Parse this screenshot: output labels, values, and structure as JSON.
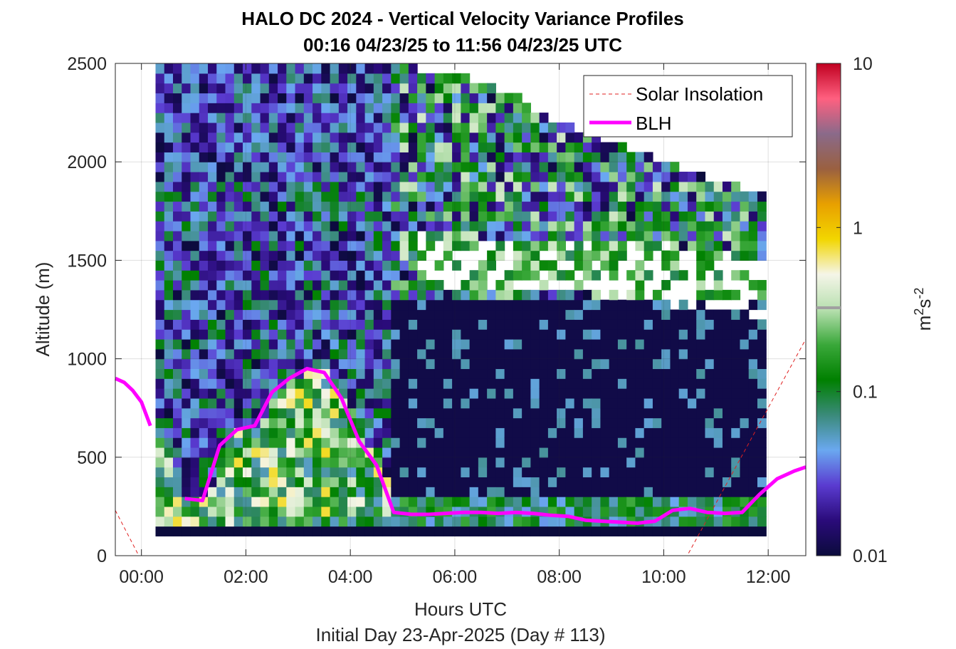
{
  "chart_data": {
    "type": "heatmap",
    "title": "HALO DC 2024 - Vertical Velocity Variance Profiles",
    "subtitle": "00:16 04/23/25 to 11:56 04/23/25  UTC",
    "xlabel": "Hours UTC",
    "xlabel2": "Initial Day 23-Apr-2025 (Day # 113)",
    "ylabel": "Altitude (m)",
    "xlim": [
      -0.5,
      12.72
    ],
    "ylim": [
      0,
      2500
    ],
    "x_ticks": [
      0,
      2,
      4,
      6,
      8,
      10,
      12
    ],
    "x_tick_labels": [
      "00:00",
      "02:00",
      "04:00",
      "06:00",
      "08:00",
      "10:00",
      "12:00"
    ],
    "y_ticks": [
      0,
      500,
      1000,
      1500,
      2000,
      2500
    ],
    "y_tick_labels": [
      "0",
      "500",
      "1000",
      "1500",
      "2000",
      "2500"
    ],
    "grid": true,
    "legend_location": "top-right",
    "colorbar": {
      "label": "m²s⁻²",
      "label_base": "m",
      "label_sup1": "2",
      "label_mid": "s",
      "label_sup2": "-2",
      "scale": "log",
      "range": [
        0.01,
        10
      ],
      "ticks": [
        0.01,
        0.1,
        1,
        10
      ],
      "tick_labels": [
        "0.01",
        "0.1",
        "1",
        "10"
      ],
      "colors": [
        "#0b0b3c",
        "#2a0b7a",
        "#5a3bd0",
        "#6aa8f0",
        "#3a8a7a",
        "#008000",
        "#3aa83a",
        "#b8e0b0",
        "#f5f5e8",
        "#f2d600",
        "#e8a000",
        "#9a6040",
        "#8a6a8a",
        "#ff6080",
        "#c00020"
      ]
    },
    "heatmap_bin_hours": 0.167,
    "heatmap_bin_m": 50,
    "heatmap_time_range_hours": [
      0.27,
      11.93
    ],
    "heatmap_altitude_range_m": [
      100,
      2500
    ],
    "series": [
      {
        "name": "Solar Insolation",
        "style": "dashed",
        "color": "#e02020",
        "x": [
          -0.5,
          -0.05,
          10.45,
          12.72
        ],
        "y": [
          230,
          0,
          0,
          1100
        ]
      },
      {
        "name": "BLH",
        "style": "solid",
        "color": "#ff00ff",
        "x": [
          -0.5,
          -0.33,
          -0.17,
          0.0,
          0.17,
          0.5,
          0.83,
          1.17,
          1.5,
          1.83,
          2.17,
          2.5,
          2.83,
          3.17,
          3.5,
          3.83,
          4.17,
          4.5,
          4.83,
          5.17,
          5.5,
          5.83,
          6.17,
          6.5,
          6.83,
          7.17,
          7.5,
          7.83,
          8.17,
          8.5,
          8.83,
          9.17,
          9.5,
          9.83,
          10.17,
          10.5,
          10.83,
          11.17,
          11.5,
          11.83,
          12.17,
          12.5,
          12.72
        ],
        "y": [
          900,
          880,
          840,
          780,
          660,
          null,
          290,
          280,
          560,
          640,
          660,
          830,
          900,
          950,
          930,
          800,
          580,
          460,
          220,
          210,
          210,
          215,
          220,
          220,
          215,
          220,
          215,
          205,
          200,
          180,
          175,
          170,
          165,
          175,
          230,
          240,
          220,
          215,
          220,
          310,
          390,
          430,
          450
        ]
      }
    ],
    "legend": [
      {
        "label": "Solar Insolation"
      },
      {
        "label": "BLH"
      }
    ]
  }
}
